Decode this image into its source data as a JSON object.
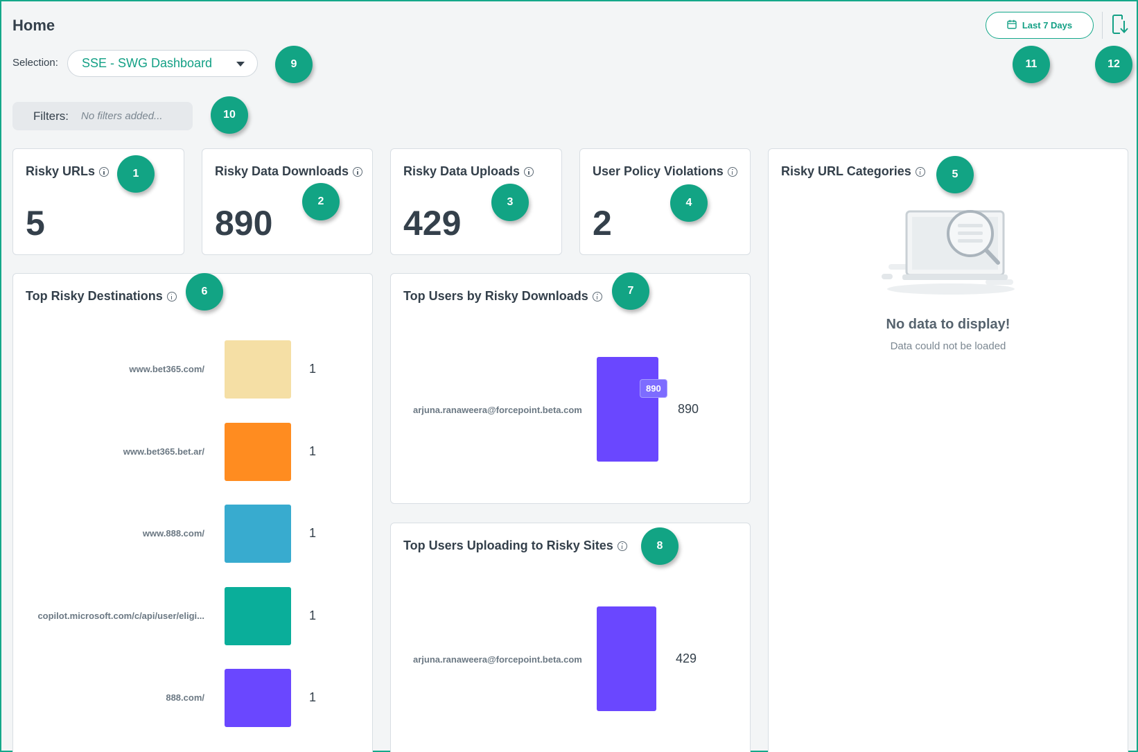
{
  "header": {
    "title": "Home",
    "selection_label": "Selection:",
    "selection_value": "SSE - SWG Dashboard",
    "date_range": "Last 7 Days"
  },
  "filters": {
    "label": "Filters:",
    "placeholder": "No filters added..."
  },
  "badges": [
    "1",
    "2",
    "3",
    "4",
    "5",
    "6",
    "7",
    "8",
    "9",
    "10",
    "11",
    "12"
  ],
  "kpis": {
    "risky_urls": {
      "title": "Risky URLs",
      "value": "5"
    },
    "risky_downloads": {
      "title": "Risky Data Downloads",
      "value": "890"
    },
    "risky_uploads": {
      "title": "Risky Data Uploads",
      "value": "429"
    },
    "policy_violations": {
      "title": "User Policy Violations",
      "value": "2"
    }
  },
  "risky_url_categories": {
    "title": "Risky URL Categories",
    "empty_title": "No data to display!",
    "empty_subtitle": "Data could not be loaded"
  },
  "top_risky_destinations": {
    "title": "Top Risky Destinations",
    "chart_data": {
      "type": "bar",
      "categories": [
        "www.bet365.com/",
        "www.bet365.bet.ar/",
        "www.888.com/",
        "copilot.microsoft.com/c/api/user/eligi...",
        "888.com/"
      ],
      "values": [
        1,
        1,
        1,
        1,
        1
      ],
      "colors": [
        "#f5dfa5",
        "#ff8c20",
        "#38abcf",
        "#0aae9a",
        "#6a47ff"
      ]
    }
  },
  "top_users_downloads": {
    "title": "Top Users by Risky Downloads",
    "chart_data": {
      "type": "bar",
      "categories": [
        "arjuna.ranaweera@forcepoint.beta.com"
      ],
      "values": [
        890
      ],
      "tooltip": "890",
      "color": "#6a47ff"
    }
  },
  "top_users_uploads": {
    "title": "Top Users Uploading to Risky Sites",
    "chart_data": {
      "type": "bar",
      "categories": [
        "arjuna.ranaweera@forcepoint.beta.com"
      ],
      "values": [
        429
      ],
      "color": "#6a47ff"
    }
  },
  "icons": {
    "date_button": "calendar-icon",
    "download_button": "download-icon",
    "info": "info-icon",
    "empty_state": "no-data-illustration"
  }
}
